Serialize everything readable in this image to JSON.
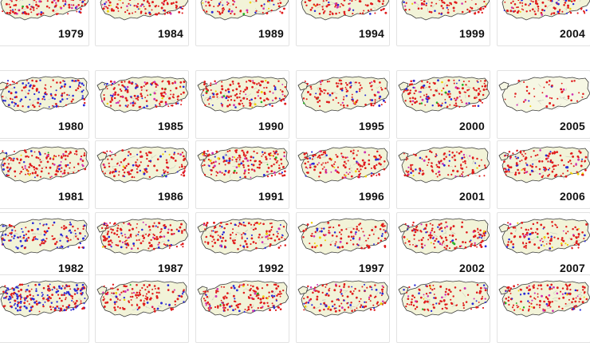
{
  "colors": {
    "land": "#f2f3d8",
    "land_pale": "#f6f7e4",
    "border": "#3a3a3a",
    "province": "#b8b8a8",
    "dots": [
      "#e01b1b",
      "#2a2ad6",
      "#d02fb0",
      "#f0d000",
      "#22b022"
    ],
    "year_text": "#111111"
  },
  "panels": [
    {
      "year": "1979",
      "col": 0,
      "row": 0
    },
    {
      "year": "1984",
      "col": 1,
      "row": 0
    },
    {
      "year": "1989",
      "col": 2,
      "row": 0
    },
    {
      "year": "1994",
      "col": 3,
      "row": 0
    },
    {
      "year": "1999",
      "col": 4,
      "row": 0
    },
    {
      "year": "2004",
      "col": 5,
      "row": 0
    },
    {
      "year": "1980",
      "col": 0,
      "row": 1
    },
    {
      "year": "1985",
      "col": 1,
      "row": 1
    },
    {
      "year": "1990",
      "col": 2,
      "row": 1
    },
    {
      "year": "1995",
      "col": 3,
      "row": 1
    },
    {
      "year": "2000",
      "col": 4,
      "row": 1
    },
    {
      "year": "2005",
      "col": 5,
      "row": 1
    },
    {
      "year": "1981",
      "col": 0,
      "row": 2
    },
    {
      "year": "1986",
      "col": 1,
      "row": 2
    },
    {
      "year": "1991",
      "col": 2,
      "row": 2
    },
    {
      "year": "1996",
      "col": 3,
      "row": 2
    },
    {
      "year": "2001",
      "col": 4,
      "row": 2
    },
    {
      "year": "2006",
      "col": 5,
      "row": 2
    },
    {
      "year": "1982",
      "col": 0,
      "row": 3
    },
    {
      "year": "1987",
      "col": 1,
      "row": 3
    },
    {
      "year": "1992",
      "col": 2,
      "row": 3
    },
    {
      "year": "1997",
      "col": 3,
      "row": 3
    },
    {
      "year": "2002",
      "col": 4,
      "row": 3
    },
    {
      "year": "2007",
      "col": 5,
      "row": 3
    },
    {
      "year": "",
      "col": 0,
      "row": 4
    },
    {
      "year": "",
      "col": 1,
      "row": 4
    },
    {
      "year": "",
      "col": 2,
      "row": 4
    },
    {
      "year": "",
      "col": 3,
      "row": 4
    },
    {
      "year": "",
      "col": 4,
      "row": 4
    },
    {
      "year": "",
      "col": 5,
      "row": 4
    }
  ]
}
